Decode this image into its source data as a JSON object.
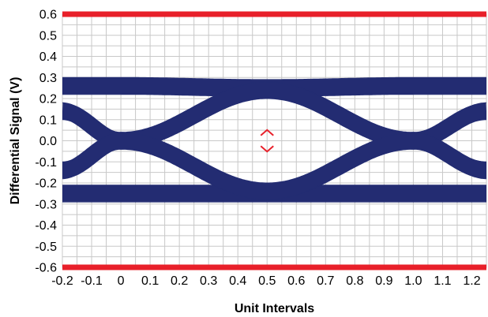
{
  "chart_data": {
    "type": "eye-diagram",
    "title": "",
    "xlabel": "Unit Intervals",
    "ylabel": "Differential Signal (V)",
    "xlim": [
      -0.2,
      1.25
    ],
    "ylim": [
      -0.6,
      0.6
    ],
    "x_ticks": [
      "-0.2",
      "-0.1",
      "0",
      "0.1",
      "0.2",
      "0.3",
      "0.4",
      "0.5",
      "0.6",
      "0.7",
      "0.8",
      "0.9",
      "1.0",
      "1.1",
      "1.2"
    ],
    "y_ticks": [
      "0.6",
      "0.5",
      "0.4",
      "0.3",
      "0.2",
      "0.1",
      "0.0",
      "-0.1",
      "-0.2",
      "-0.3",
      "-0.4",
      "-0.5",
      "-0.6"
    ],
    "grid": true,
    "mask_limits": {
      "upper": 0.6,
      "lower": -0.6,
      "color": "#e8202a"
    },
    "eye_center": {
      "x": 0.5,
      "top": 0.04,
      "bottom": -0.04,
      "color": "#e8202a"
    },
    "trace_color": "#232c72",
    "series": [
      {
        "x": [
          -0.2,
          0.0,
          0.5,
          1.0,
          1.25
        ],
        "y": [
          0.26,
          0.26,
          0.25,
          0.26,
          0.26
        ]
      },
      {
        "x": [
          -0.2,
          0.0,
          0.5,
          1.0,
          1.25
        ],
        "y": [
          -0.25,
          -0.25,
          -0.25,
          -0.25,
          -0.25
        ]
      },
      {
        "x": [
          -0.2,
          0.0,
          0.5,
          1.0,
          1.25
        ],
        "y": [
          0.14,
          0.0,
          0.24,
          0.0,
          0.14
        ]
      },
      {
        "x": [
          -0.2,
          0.0,
          0.5,
          1.0,
          1.25
        ],
        "y": [
          -0.14,
          0.0,
          -0.24,
          0.0,
          -0.14
        ]
      }
    ]
  }
}
